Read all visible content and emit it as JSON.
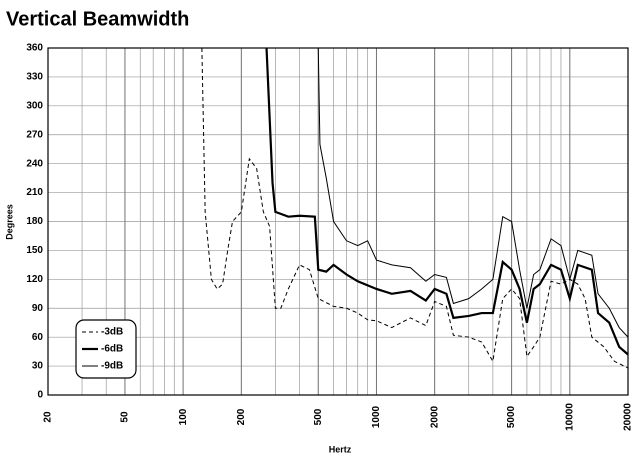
{
  "chart_data": {
    "type": "line",
    "title": "Vertical Beamwidth",
    "xlabel": "Hertz",
    "ylabel": "Degrees",
    "xscale": "log",
    "xlim": [
      20,
      20000
    ],
    "ylim": [
      0,
      360
    ],
    "xticks": [
      20,
      50,
      100,
      200,
      500,
      1000,
      2000,
      5000,
      10000,
      20000
    ],
    "yticks": [
      0,
      30,
      60,
      90,
      120,
      150,
      180,
      210,
      240,
      270,
      300,
      330,
      360
    ],
    "grid": true,
    "legend": "lower left",
    "series": [
      {
        "name": "-3dB",
        "color": "#000000",
        "linestyle": "dashed",
        "linewidth": 1,
        "x": [
          125,
          130,
          140,
          150,
          160,
          170,
          180,
          200,
          220,
          240,
          260,
          280,
          300,
          320,
          350,
          400,
          450,
          500,
          600,
          700,
          800,
          900,
          1000,
          1200,
          1500,
          1800,
          2000,
          2300,
          2500,
          3000,
          3500,
          4000,
          4500,
          5000,
          5500,
          6000,
          6500,
          7000,
          8000,
          9000,
          10000,
          11000,
          12000,
          13000,
          15000,
          17000,
          20000
        ],
        "values": [
          360,
          190,
          120,
          110,
          115,
          150,
          180,
          190,
          245,
          235,
          190,
          175,
          90,
          90,
          110,
          135,
          130,
          100,
          92,
          90,
          85,
          78,
          77,
          70,
          80,
          72,
          97,
          92,
          62,
          60,
          55,
          35,
          100,
          110,
          100,
          40,
          50,
          60,
          118,
          115,
          120,
          115,
          100,
          60,
          50,
          35,
          28
        ]
      },
      {
        "name": "-6dB",
        "color": "#000000",
        "linestyle": "solid",
        "linewidth": 2.2,
        "x": [
          270,
          290,
          300,
          350,
          400,
          480,
          500,
          550,
          600,
          700,
          800,
          1000,
          1200,
          1500,
          1800,
          2000,
          2300,
          2500,
          3000,
          3500,
          4000,
          4500,
          5000,
          5500,
          6000,
          6500,
          7000,
          8000,
          9000,
          10000,
          11000,
          13000,
          14000,
          16000,
          18000,
          20000
        ],
        "values": [
          360,
          220,
          190,
          185,
          186,
          185,
          130,
          128,
          135,
          125,
          118,
          110,
          105,
          108,
          98,
          110,
          105,
          80,
          82,
          85,
          85,
          138,
          130,
          110,
          75,
          110,
          115,
          135,
          130,
          100,
          135,
          130,
          85,
          75,
          50,
          42
        ]
      },
      {
        "name": "-9dB",
        "color": "#000000",
        "linestyle": "solid",
        "linewidth": 1,
        "x": [
          500,
          510,
          550,
          600,
          700,
          800,
          900,
          1000,
          1200,
          1500,
          1800,
          2000,
          2300,
          2500,
          3000,
          3500,
          4000,
          4500,
          5000,
          5500,
          6000,
          6500,
          7000,
          8000,
          9000,
          10000,
          11000,
          13000,
          14000,
          16000,
          18000,
          20000
        ],
        "values": [
          360,
          260,
          225,
          180,
          160,
          155,
          160,
          140,
          135,
          132,
          118,
          125,
          122,
          95,
          100,
          110,
          120,
          185,
          180,
          130,
          90,
          125,
          130,
          162,
          155,
          120,
          150,
          145,
          105,
          90,
          70,
          60
        ]
      }
    ]
  }
}
